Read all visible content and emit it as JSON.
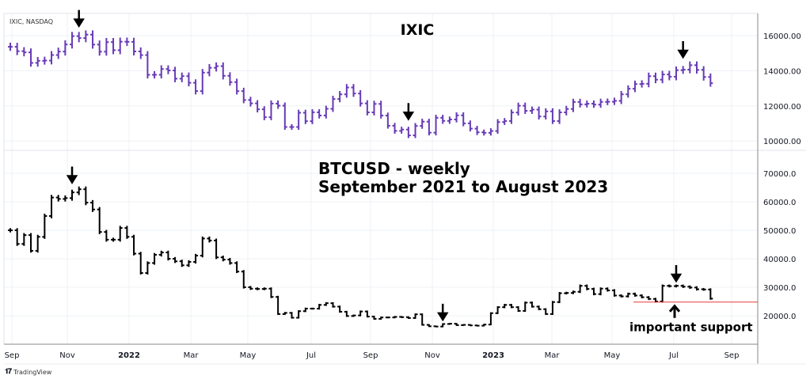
{
  "legend": "IXIC, NASDAQ",
  "brand": "TradingView",
  "brand_logo": "TV",
  "colors": {
    "ixic": "#673ab7",
    "btc": "#000000",
    "support": "#e53935",
    "grid": "#eef0f4"
  },
  "chart_data": [
    {
      "type": "ohlc-bar",
      "title": "IXIC",
      "series_name": "IXIC, NASDAQ",
      "frequency": "weekly",
      "ylim": [
        9200,
        16900
      ],
      "yticks": [
        {
          "v": 16000,
          "label": "16000.00"
        },
        {
          "v": 14000,
          "label": "14000.00"
        },
        {
          "v": 12000,
          "label": "12000.00"
        },
        {
          "v": 10000,
          "label": "10000.00"
        }
      ],
      "close": [
        15363,
        15115,
        15047,
        14448,
        14567,
        14580,
        14897,
        15090,
        15498,
        15971,
        15860,
        16057,
        15491,
        15085,
        15630,
        15170,
        15653,
        15645,
        15100,
        14893,
        13768,
        13770,
        14098,
        14015,
        13548,
        13694,
        13313,
        12843,
        13893,
        14169,
        14261,
        13711,
        13351,
        12839,
        12335,
        12144,
        11805,
        11355,
        12131,
        12012,
        10799,
        10798,
        11608,
        11128,
        11635,
        11452,
        11834,
        12391,
        12657,
        13047,
        12705,
        12141,
        11631,
        12112,
        11448,
        10868,
        10576,
        10652,
        10321,
        10859,
        11102,
        10475,
        11323,
        11146,
        11226,
        11461,
        11005,
        10705,
        10497,
        10466,
        10569,
        11079,
        11140,
        11622,
        12007,
        11718,
        11787,
        11395,
        11689,
        11138,
        11631,
        11824,
        12222,
        12088,
        12124,
        12072,
        12227,
        12236,
        12285,
        12658,
        12976,
        13240,
        13259,
        13689,
        13492,
        13788,
        13661,
        14032,
        14063,
        14316,
        14050,
        13644,
        13291
      ],
      "arrows_down_at_week": [
        10,
        58,
        98
      ]
    },
    {
      "type": "ohlc-bar",
      "title_lines": [
        "BTCUSD - weekly",
        "September 2021 to August 2023"
      ],
      "frequency": "weekly",
      "ylim": [
        12000,
        78000
      ],
      "yticks": [
        {
          "v": 70000,
          "label": "70000.0"
        },
        {
          "v": 60000,
          "label": "60000.0"
        },
        {
          "v": 50000,
          "label": "50000.0"
        },
        {
          "v": 40000,
          "label": "40000.0"
        },
        {
          "v": 30000,
          "label": "30000.0"
        },
        {
          "v": 20000,
          "label": "20000.0"
        }
      ],
      "close": [
        50000,
        45200,
        48300,
        42800,
        47700,
        55000,
        61500,
        61000,
        61300,
        63300,
        64400,
        59700,
        57300,
        49400,
        46700,
        46700,
        50800,
        47700,
        41800,
        35000,
        38500,
        41400,
        42200,
        40000,
        39100,
        37700,
        38900,
        41100,
        47100,
        46400,
        40500,
        39700,
        38500,
        35500,
        30000,
        29500,
        29400,
        29500,
        26600,
        20600,
        21000,
        19300,
        21600,
        22500,
        22500,
        23800,
        24400,
        23200,
        21400,
        19900,
        20100,
        21500,
        19700,
        18900,
        19400,
        19400,
        19600,
        19500,
        19200,
        20500,
        16800,
        16300,
        16200,
        17100,
        17200,
        16700,
        16800,
        16600,
        16500,
        16900,
        20900,
        23000,
        23800,
        23000,
        21700,
        24600,
        23200,
        22300,
        20600,
        24800,
        27900,
        28000,
        28400,
        30500,
        29400,
        27600,
        29500,
        28900,
        27100,
        26800,
        27700,
        27100,
        26500,
        25900,
        25000,
        30500,
        30400,
        30500,
        30200,
        29900,
        29300,
        29200,
        26000
      ],
      "arrows_down_at_week": [
        9,
        63,
        97
      ],
      "support_level": 24800,
      "support_label": "important support"
    }
  ],
  "xaxis": {
    "labels": [
      {
        "t": "Sep",
        "bold": false
      },
      {
        "t": "Nov",
        "bold": false
      },
      {
        "t": "2022",
        "bold": true
      },
      {
        "t": "Mar",
        "bold": false
      },
      {
        "t": "May",
        "bold": false
      },
      {
        "t": "Jul",
        "bold": false
      },
      {
        "t": "Sep",
        "bold": false
      },
      {
        "t": "Nov",
        "bold": false
      },
      {
        "t": "2023",
        "bold": true
      },
      {
        "t": "Mar",
        "bold": false
      },
      {
        "t": "May",
        "bold": false
      },
      {
        "t": "Jul",
        "bold": false
      },
      {
        "t": "Sep",
        "bold": false
      }
    ]
  }
}
